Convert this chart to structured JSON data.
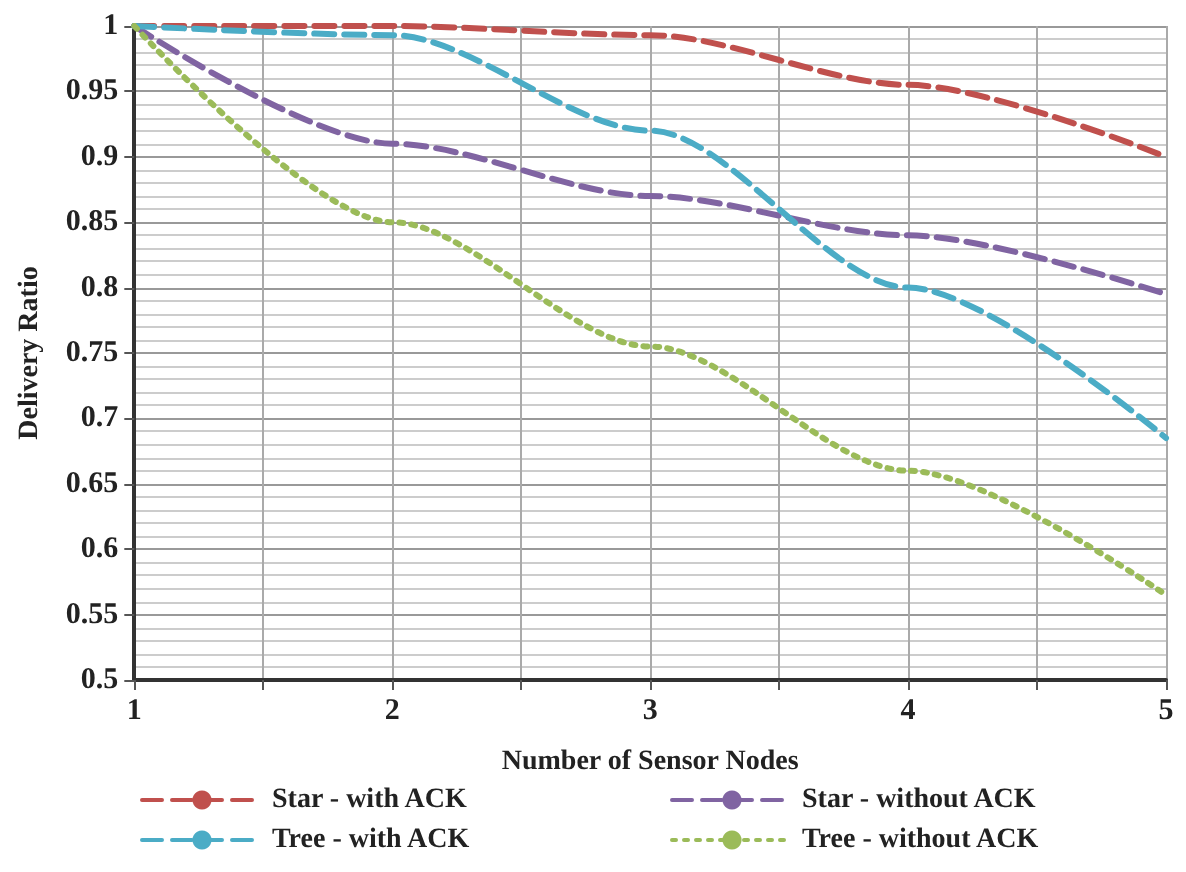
{
  "chart_data": {
    "type": "line",
    "xlabel": "Number of Sensor Nodes",
    "ylabel": "Delivery Ratio",
    "x": [
      1,
      2,
      3,
      4,
      5
    ],
    "series": [
      {
        "name": "Star - with ACK",
        "color": "#c0504d",
        "line_style": "dashed",
        "values": [
          1,
          1,
          0.993,
          0.955,
          0.9
        ]
      },
      {
        "name": "Star - without ACK",
        "color": "#8064a2",
        "line_style": "dashed",
        "values": [
          1,
          0.91,
          0.87,
          0.84,
          0.795
        ]
      },
      {
        "name": "Tree - with ACK",
        "color": "#4bacc6",
        "line_style": "dashed",
        "values": [
          1,
          0.993,
          0.92,
          0.8,
          0.685
        ]
      },
      {
        "name": "Tree - without ACK",
        "color": "#9bbb59",
        "line_style": "dotted",
        "values": [
          1,
          0.85,
          0.755,
          0.66,
          0.565
        ]
      }
    ],
    "xlim": [
      1,
      5
    ],
    "xticks": [
      1,
      {
        "value": 1.5,
        "label": null
      },
      2,
      {
        "value": 2.5,
        "label": null
      },
      3,
      {
        "value": 3.5,
        "label": null
      },
      4,
      {
        "value": 4.5,
        "label": null
      },
      5
    ],
    "ylim": [
      0.5,
      1
    ],
    "yticks": [
      0.5,
      0.55,
      0.6,
      0.65,
      0.7,
      0.75,
      0.8,
      0.85,
      0.9,
      0.95,
      1
    ],
    "grid": true,
    "legend": "bottom",
    "marker": "none"
  }
}
